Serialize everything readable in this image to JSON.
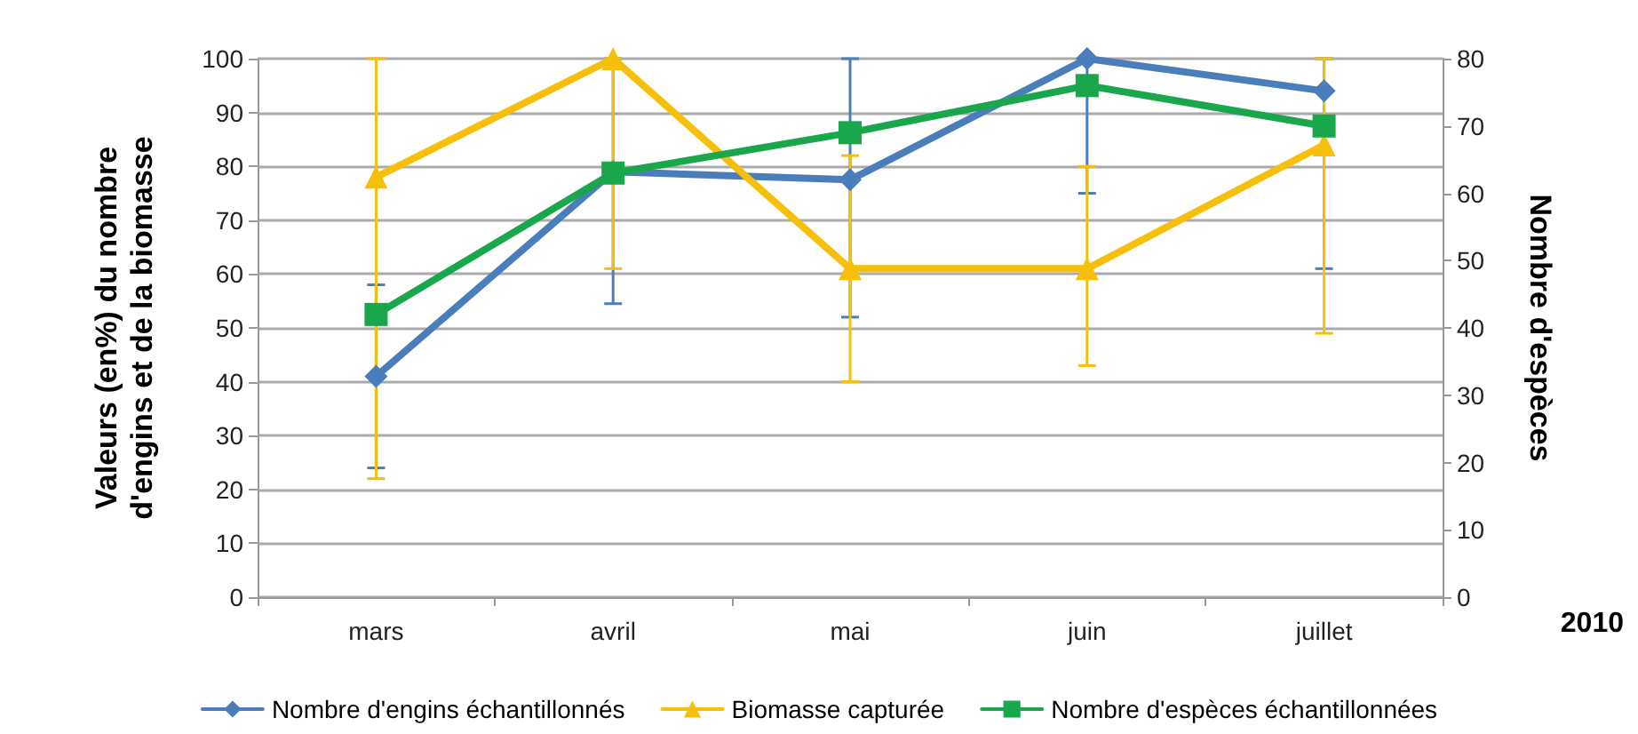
{
  "chart_data": {
    "type": "line",
    "ylabel": "Valeurs (en%) du nombre d'engins et de la biomasse",
    "y2label": "Nombre d'espèces",
    "categories": [
      "mars",
      "avril",
      "mai",
      "juin",
      "juillet"
    ],
    "series": [
      {
        "name": "Nombre d'engins échantillonnés",
        "color": "#4a7ebb",
        "marker": "diamond",
        "values": [
          41,
          79,
          77.5,
          100,
          94
        ],
        "errors": [
          [
            24,
            58
          ],
          [
            54.5,
            100
          ],
          [
            52,
            100
          ],
          [
            75,
            100
          ],
          [
            61,
            100
          ]
        ]
      },
      {
        "name": "Biomasse capturée",
        "color": "#f5bf0a",
        "marker": "triangle",
        "values": [
          78,
          100,
          61,
          61,
          84
        ],
        "errors": [
          [
            22,
            100
          ],
          [
            61,
            100
          ],
          [
            40,
            82
          ],
          [
            43,
            80
          ],
          [
            49,
            100
          ]
        ]
      },
      {
        "name": "Nombre d'espèces échantillonnées",
        "color": "#1aa64a",
        "marker": "square",
        "axis": "y2",
        "values": [
          42,
          63,
          69,
          76,
          70
        ]
      }
    ],
    "ylim": [
      0,
      100
    ],
    "yticks": [
      0,
      10,
      20,
      30,
      40,
      50,
      60,
      70,
      80,
      90,
      100
    ],
    "y2lim": [
      0,
      80
    ],
    "y2ticks": [
      0,
      10,
      20,
      30,
      40,
      50,
      60,
      70,
      80
    ],
    "grid": "y",
    "legend": "bottom",
    "annotations": [
      "2010"
    ]
  }
}
